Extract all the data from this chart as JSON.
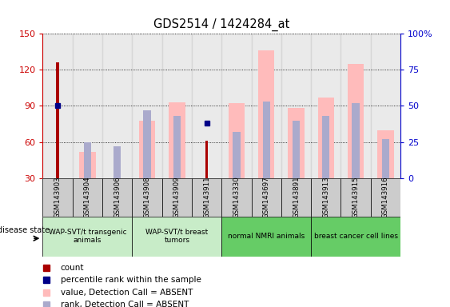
{
  "title": "GDS2514 / 1424284_at",
  "samples": [
    "GSM143903",
    "GSM143904",
    "GSM143906",
    "GSM143908",
    "GSM143909",
    "GSM143911",
    "GSM143330",
    "GSM143697",
    "GSM143891",
    "GSM143913",
    "GSM143915",
    "GSM143916"
  ],
  "count_values": [
    126,
    null,
    null,
    null,
    null,
    61,
    null,
    null,
    null,
    null,
    null,
    null
  ],
  "percentile_values": [
    50,
    null,
    null,
    null,
    null,
    38,
    null,
    null,
    null,
    null,
    null,
    null
  ],
  "pink_bar_values": [
    null,
    52,
    30,
    78,
    93,
    null,
    92,
    136,
    88,
    97,
    125,
    70
  ],
  "light_blue_bar_values": [
    null,
    25,
    22,
    47,
    43,
    null,
    32,
    53,
    40,
    43,
    52,
    27
  ],
  "ylim": [
    30,
    150
  ],
  "y2lim": [
    0,
    100
  ],
  "yticks_left": [
    30,
    60,
    90,
    120,
    150
  ],
  "yticks_right": [
    0,
    25,
    50,
    75,
    100
  ],
  "disease_groups": [
    {
      "label": "WAP-SVT/t transgenic\nanimals",
      "start": 0,
      "end": 3
    },
    {
      "label": "WAP-SVT/t breast\ntumors",
      "start": 3,
      "end": 6
    },
    {
      "label": "normal NMRI animals",
      "start": 6,
      "end": 9
    },
    {
      "label": "breast cancer cell lines",
      "start": 9,
      "end": 12
    }
  ],
  "group_colors": [
    "#c8ecc8",
    "#c8ecc8",
    "#66cc66",
    "#66cc66"
  ],
  "colors": {
    "count": "#aa0000",
    "percentile": "#000088",
    "pink_bar": "#ffbbbb",
    "light_blue_bar": "#aaaacc",
    "tick_left": "#cc0000",
    "tick_right": "#0000cc",
    "bg_sample": "#cccccc"
  },
  "legend_items": [
    {
      "label": "count",
      "color": "#aa0000"
    },
    {
      "label": "percentile rank within the sample",
      "color": "#000088"
    },
    {
      "label": "value, Detection Call = ABSENT",
      "color": "#ffbbbb"
    },
    {
      "label": "rank, Detection Call = ABSENT",
      "color": "#aaaacc"
    }
  ]
}
